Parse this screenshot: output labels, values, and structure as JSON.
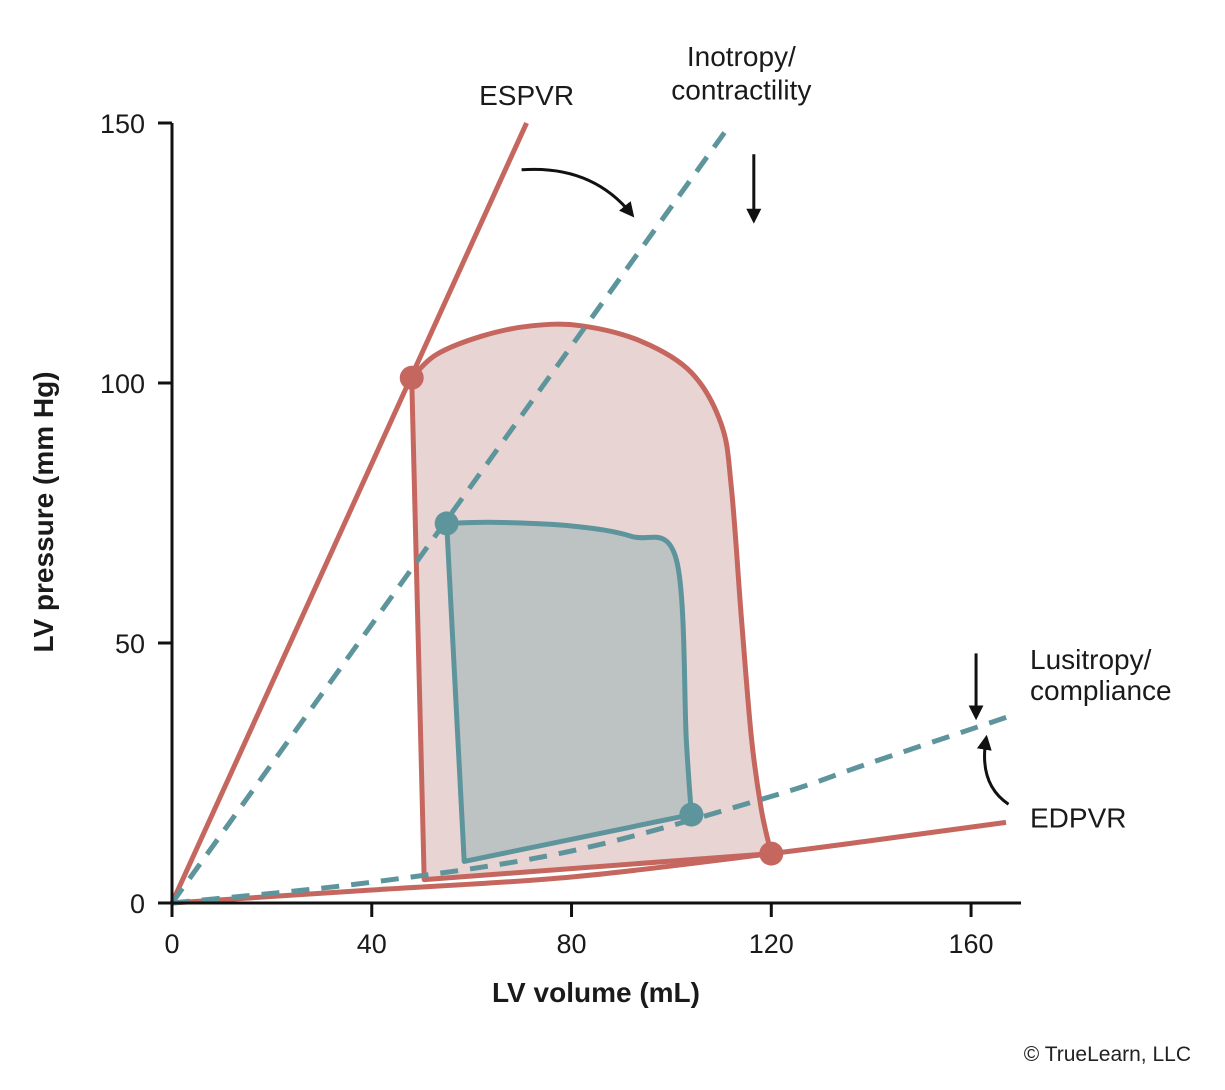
{
  "chart_data": {
    "type": "line",
    "title": "",
    "xlabel": "LV volume (mL)",
    "ylabel": "LV pressure (mm Hg)",
    "xlim": [
      0,
      170
    ],
    "ylim": [
      0,
      150
    ],
    "xticks": [
      0,
      40,
      80,
      120,
      160
    ],
    "yticks": [
      0,
      50,
      100,
      150
    ],
    "grid": false,
    "series": [
      {
        "name": "ESPVR",
        "style": "solid",
        "color": "#c5675f",
        "points": [
          [
            0,
            0
          ],
          [
            71,
            150
          ]
        ]
      },
      {
        "name": "Inotropy/contractility",
        "style": "dashed",
        "color": "#5e959c",
        "points": [
          [
            0,
            0
          ],
          [
            112,
            150
          ]
        ]
      },
      {
        "name": "EDPVR",
        "style": "solid",
        "color": "#c5675f",
        "points": [
          [
            0,
            0
          ],
          [
            40,
            2.5
          ],
          [
            80,
            5
          ],
          [
            120,
            9.5
          ],
          [
            140,
            12
          ],
          [
            167,
            15.5
          ]
        ]
      },
      {
        "name": "Lusitropy/compliance",
        "style": "dashed",
        "color": "#5e959c",
        "points": [
          [
            0,
            0
          ],
          [
            40,
            4
          ],
          [
            80,
            10
          ],
          [
            120,
            20.5
          ],
          [
            140,
            27
          ],
          [
            168,
            36
          ]
        ]
      }
    ],
    "loops": [
      {
        "color": "#c5675f",
        "fill": "#e8d5d3",
        "points": [
          [
            48,
            101
          ],
          [
            53,
            105.5
          ],
          [
            62,
            109
          ],
          [
            72,
            111
          ],
          [
            82,
            111
          ],
          [
            94,
            108
          ],
          [
            104,
            102
          ],
          [
            110,
            92
          ],
          [
            112,
            80
          ],
          [
            114,
            55
          ],
          [
            116,
            32
          ],
          [
            118,
            18
          ],
          [
            120,
            9.5
          ],
          [
            50.5,
            4.5
          ]
        ],
        "corners": [
          [
            48,
            101
          ],
          [
            120,
            9.5
          ]
        ]
      },
      {
        "color": "#5e959c",
        "fill": "#bdc3c3",
        "points": [
          [
            55,
            73
          ],
          [
            65,
            73.2
          ],
          [
            80,
            72.5
          ],
          [
            92,
            70.5
          ],
          [
            101,
            66
          ],
          [
            103,
            31
          ],
          [
            104,
            17
          ],
          [
            58.5,
            8
          ]
        ],
        "corners": [
          [
            55,
            73
          ],
          [
            104,
            17
          ]
        ]
      }
    ],
    "annotations": [
      {
        "text": "ESPVR",
        "x": 71,
        "y": 153.5
      },
      {
        "text": "Inotropy/",
        "x": 114,
        "y": 161
      },
      {
        "text": "contractility",
        "x": 114,
        "y": 154.5
      },
      {
        "text": "Lusitropy/",
        "x": 172,
        "y": 45
      },
      {
        "text": "compliance",
        "x": 172,
        "y": 39
      },
      {
        "text": "EDPVR",
        "x": 172,
        "y": 14.5
      }
    ],
    "arrows": [
      {
        "kind": "curved",
        "from": [
          70,
          141
        ],
        "to": [
          92,
          132.5
        ]
      },
      {
        "kind": "straight",
        "from": [
          116.5,
          144
        ],
        "to": [
          116.5,
          131.5
        ]
      },
      {
        "kind": "straight",
        "from": [
          161,
          48
        ],
        "to": [
          161,
          36
        ]
      },
      {
        "kind": "curved",
        "from": [
          167.5,
          19
        ],
        "to": [
          163,
          31.5
        ]
      }
    ],
    "legend": "none"
  },
  "copyright": "© TrueLearn, LLC"
}
